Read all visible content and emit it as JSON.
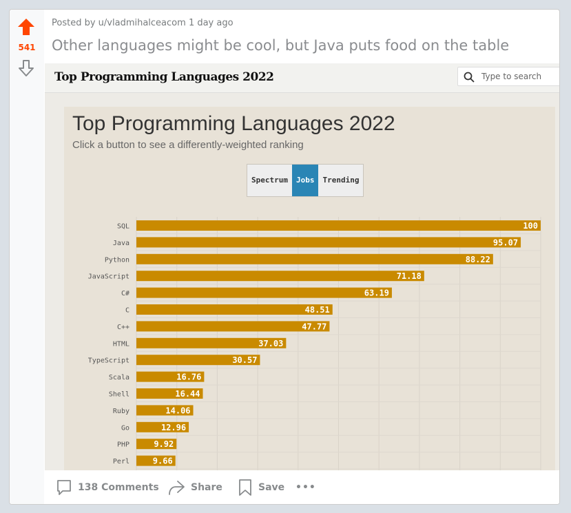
{
  "post": {
    "score": "541",
    "posted_by_prefix": "Posted by",
    "author": "u/vladmihalceacom",
    "age": "1 day ago",
    "title": "Other languages might be cool, but Java puts food on the table"
  },
  "media": {
    "header_logo": "Top Programming Languages 2022",
    "search_placeholder": "Type to search"
  },
  "chart_header": {
    "title": "Top Programming Languages 2022",
    "subtitle": "Click a button to see a differently-weighted ranking",
    "buttons": [
      "Spectrum",
      "Jobs",
      "Trending"
    ],
    "active_button": "Jobs"
  },
  "actions": {
    "comments": "138 Comments",
    "share": "Share",
    "save": "Save",
    "more": "•••"
  },
  "colors": {
    "upvote": "#ff4500",
    "bar": "#c98a00",
    "active_button": "#2a85b5"
  },
  "chart_data": {
    "type": "bar",
    "orientation": "horizontal",
    "categories": [
      "SQL",
      "Java",
      "Python",
      "JavaScript",
      "C#",
      "C",
      "C++",
      "HTML",
      "TypeScript",
      "Scala",
      "Shell",
      "Ruby",
      "Go",
      "PHP",
      "Perl"
    ],
    "values": [
      100,
      95.07,
      88.22,
      71.18,
      63.19,
      48.51,
      47.77,
      37.03,
      30.57,
      16.76,
      16.44,
      14.06,
      12.96,
      9.92,
      9.66
    ],
    "value_labels": [
      "100",
      "95.07",
      "88.22",
      "71.18",
      "63.19",
      "48.51",
      "47.77",
      "37.03",
      "30.57",
      "16.76",
      "16.44",
      "14.06",
      "12.96",
      "9.92",
      "9.66"
    ],
    "xlim": [
      0,
      100
    ],
    "grid": true
  }
}
